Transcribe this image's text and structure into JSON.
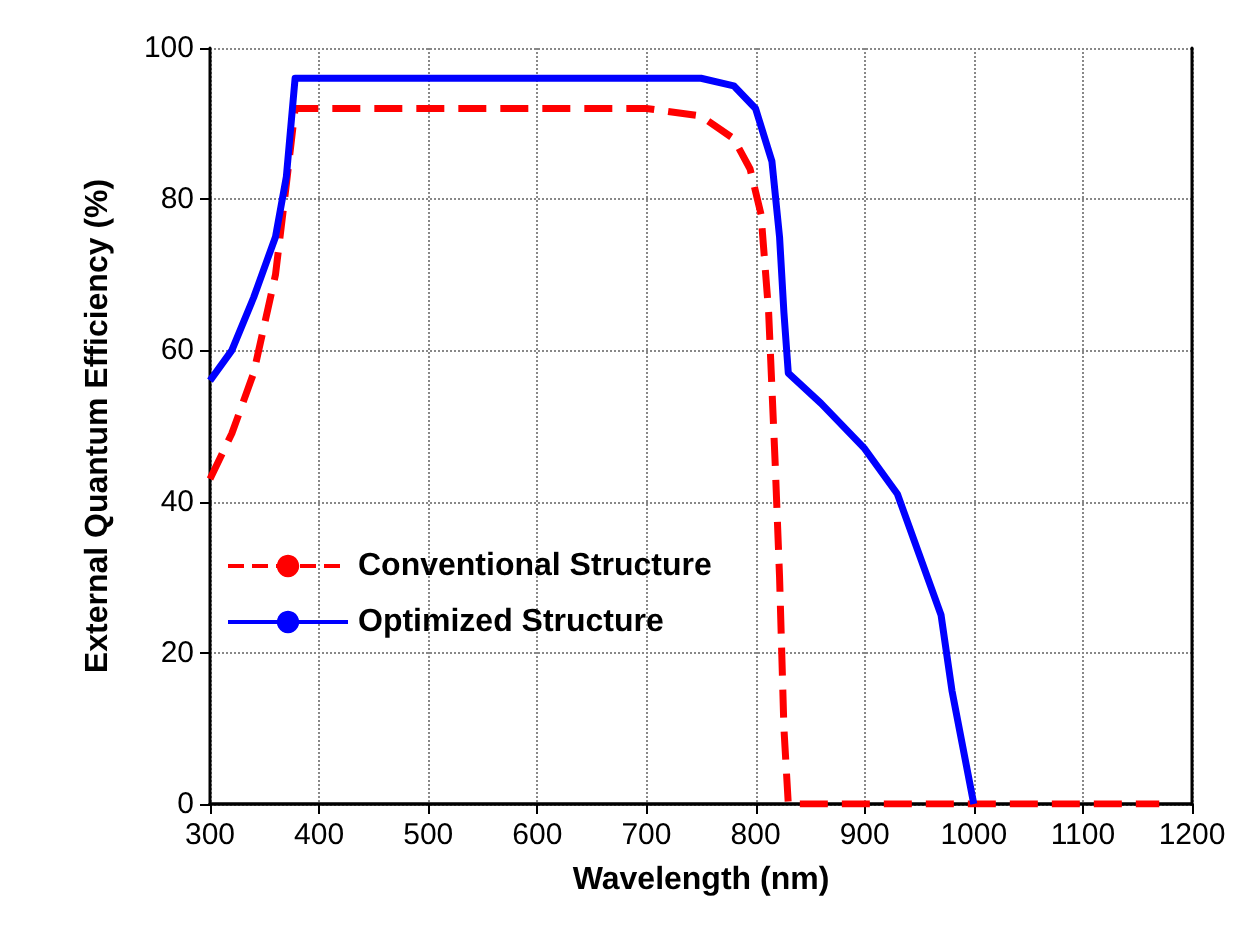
{
  "chart_data": {
    "type": "line",
    "xlabel": "Wavelength (nm)",
    "ylabel": "External Quantum Efficiency (%)",
    "xlim": [
      300,
      1200
    ],
    "xticks": [
      300,
      400,
      500,
      600,
      700,
      800,
      900,
      1000,
      1100,
      1200
    ],
    "ylim": [
      0,
      100
    ],
    "yticks": [
      0,
      20,
      40,
      60,
      80,
      100
    ],
    "grid": true,
    "legend": "left",
    "marker": "none",
    "series": [
      {
        "name": "Conventional Structure",
        "color": "#ff0000",
        "line_style": "dashed",
        "x": [
          300,
          320,
          340,
          360,
          370,
          378,
          400,
          500,
          600,
          700,
          750,
          780,
          795,
          805,
          812,
          818,
          822,
          826,
          830,
          900,
          1000,
          1100,
          1170
        ],
        "values": [
          43,
          49,
          57,
          70,
          82,
          92,
          92,
          92,
          92,
          92,
          91,
          88,
          84,
          78,
          65,
          45,
          30,
          10,
          0,
          0,
          0,
          0,
          0
        ]
      },
      {
        "name": "Optimized Structure",
        "color": "#0000ff",
        "line_style": "solid",
        "x": [
          300,
          320,
          340,
          360,
          370,
          378,
          400,
          500,
          600,
          700,
          750,
          780,
          800,
          815,
          822,
          826,
          830,
          860,
          900,
          930,
          950,
          970,
          980,
          1000
        ],
        "values": [
          56,
          60,
          67,
          75,
          83,
          96,
          96,
          96,
          96,
          96,
          96,
          95,
          92,
          85,
          75,
          65,
          57,
          53,
          47,
          41,
          33,
          25,
          15,
          0
        ]
      }
    ]
  }
}
